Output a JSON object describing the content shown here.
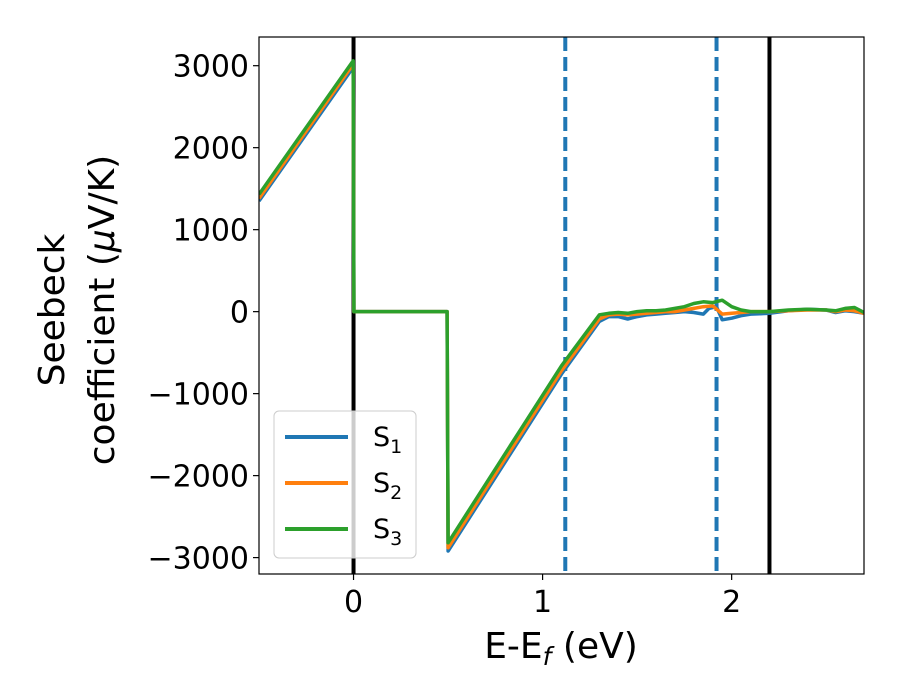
{
  "chart_data": {
    "type": "line",
    "xlabel": "E-E",
    "xlabel_sub": "f",
    "xlabel_unit": " (eV)",
    "ylabel_line1": "Seebeck",
    "ylabel_line2": "coefficient  (",
    "ylabel_mu": "μ",
    "ylabel_unit": "V/K)",
    "xlim": [
      -0.5,
      2.7
    ],
    "ylim": [
      -3200,
      3350
    ],
    "xticks": [
      0,
      1,
      2
    ],
    "xtick_labels": [
      "0",
      "1",
      "2"
    ],
    "yticks": [
      -3000,
      -2000,
      -1000,
      0,
      1000,
      2000,
      3000
    ],
    "ytick_labels": [
      "−3000",
      "−2000",
      "−1000",
      "0",
      "1000",
      "2000",
      "3000"
    ],
    "grid": false,
    "legend_position": "lower-left",
    "vertical_lines": [
      {
        "x": 0.0,
        "style": "solid",
        "color": "#000000"
      },
      {
        "x": 1.12,
        "style": "dashed",
        "color": "#1f77b4"
      },
      {
        "x": 1.92,
        "style": "dashed",
        "color": "#1f77b4"
      },
      {
        "x": 2.2,
        "style": "solid",
        "color": "#000000"
      }
    ],
    "series": [
      {
        "name": "S",
        "sub": "1",
        "color": "#1f77b4",
        "x": [
          -0.5,
          -0.002,
          0.002,
          0.2,
          0.495,
          0.5,
          0.7,
          0.9,
          1.1,
          1.3,
          1.35,
          1.4,
          1.45,
          1.5,
          1.55,
          1.6,
          1.65,
          1.7,
          1.75,
          1.8,
          1.85,
          1.88,
          1.92,
          1.95,
          2.0,
          2.05,
          2.1,
          2.2,
          2.3,
          2.4,
          2.5,
          2.55,
          2.6,
          2.65,
          2.7
        ],
        "y": [
          1350,
          2980,
          0,
          0,
          0,
          -2920,
          -2200,
          -1480,
          -760,
          -120,
          -60,
          -60,
          -90,
          -60,
          -40,
          -30,
          -20,
          -10,
          0,
          -10,
          -30,
          40,
          60,
          -100,
          -80,
          -50,
          -30,
          -20,
          10,
          30,
          20,
          -10,
          10,
          0,
          -20
        ]
      },
      {
        "name": "S",
        "sub": "2",
        "color": "#ff7f0e",
        "x": [
          -0.5,
          -0.002,
          0.002,
          0.2,
          0.495,
          0.5,
          0.7,
          0.9,
          1.1,
          1.3,
          1.35,
          1.4,
          1.45,
          1.5,
          1.55,
          1.6,
          1.65,
          1.7,
          1.75,
          1.8,
          1.85,
          1.9,
          1.95,
          2.0,
          2.05,
          2.1,
          2.2,
          2.3,
          2.4,
          2.5,
          2.55,
          2.6,
          2.65,
          2.7
        ],
        "y": [
          1380,
          3020,
          0,
          0,
          0,
          -2880,
          -2160,
          -1440,
          -720,
          -90,
          -40,
          -30,
          -40,
          -30,
          -20,
          -10,
          0,
          0,
          20,
          40,
          60,
          70,
          -30,
          -20,
          -10,
          0,
          0,
          10,
          20,
          20,
          0,
          20,
          10,
          -20
        ]
      },
      {
        "name": "S",
        "sub": "3",
        "color": "#2ca02c",
        "x": [
          -0.5,
          -0.002,
          0.002,
          0.2,
          0.495,
          0.5,
          0.7,
          0.9,
          1.1,
          1.3,
          1.35,
          1.4,
          1.45,
          1.5,
          1.55,
          1.6,
          1.65,
          1.7,
          1.75,
          1.8,
          1.85,
          1.9,
          1.95,
          2.0,
          2.05,
          2.1,
          2.2,
          2.3,
          2.4,
          2.5,
          2.55,
          2.6,
          2.65,
          2.7
        ],
        "y": [
          1430,
          3060,
          0,
          0,
          0,
          -2820,
          -2100,
          -1380,
          -660,
          -40,
          -20,
          -10,
          -20,
          0,
          10,
          10,
          20,
          40,
          60,
          100,
          120,
          110,
          140,
          60,
          20,
          0,
          0,
          20,
          30,
          20,
          10,
          40,
          50,
          -10
        ]
      }
    ]
  }
}
